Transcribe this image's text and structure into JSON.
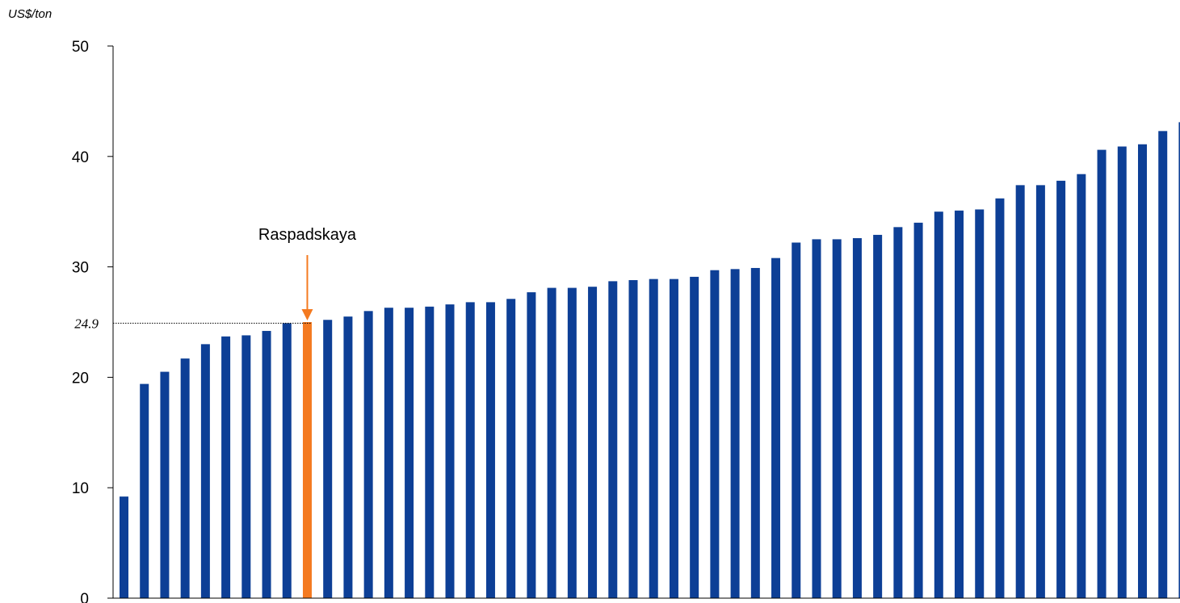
{
  "chart_data": {
    "type": "bar",
    "ylabel": "US$/ton",
    "ylim": [
      0,
      50
    ],
    "yticks": [
      0,
      10,
      20,
      30,
      40,
      50
    ],
    "grid": false,
    "legend": "none",
    "colors": {
      "bar": "#0D3F96",
      "highlight": "#F47A20",
      "axis": "#000000"
    },
    "highlight_index": 9,
    "reference": {
      "value": 24.9,
      "label": "24.9"
    },
    "annotation": {
      "text": "Raspadskaya",
      "target_index": 9
    },
    "values": [
      9.2,
      19.4,
      20.5,
      21.7,
      23.0,
      23.7,
      23.8,
      24.2,
      24.9,
      25.0,
      25.2,
      25.5,
      26.0,
      26.3,
      26.3,
      26.4,
      26.6,
      26.8,
      26.8,
      27.1,
      27.7,
      28.1,
      28.1,
      28.2,
      28.7,
      28.8,
      28.9,
      28.9,
      29.1,
      29.7,
      29.8,
      29.9,
      30.8,
      32.2,
      32.5,
      32.5,
      32.6,
      32.9,
      33.6,
      34.0,
      35.0,
      35.1,
      35.2,
      36.2,
      37.4,
      37.4,
      37.8,
      38.4,
      40.6,
      40.9,
      41.1,
      42.3,
      43.1
    ]
  }
}
